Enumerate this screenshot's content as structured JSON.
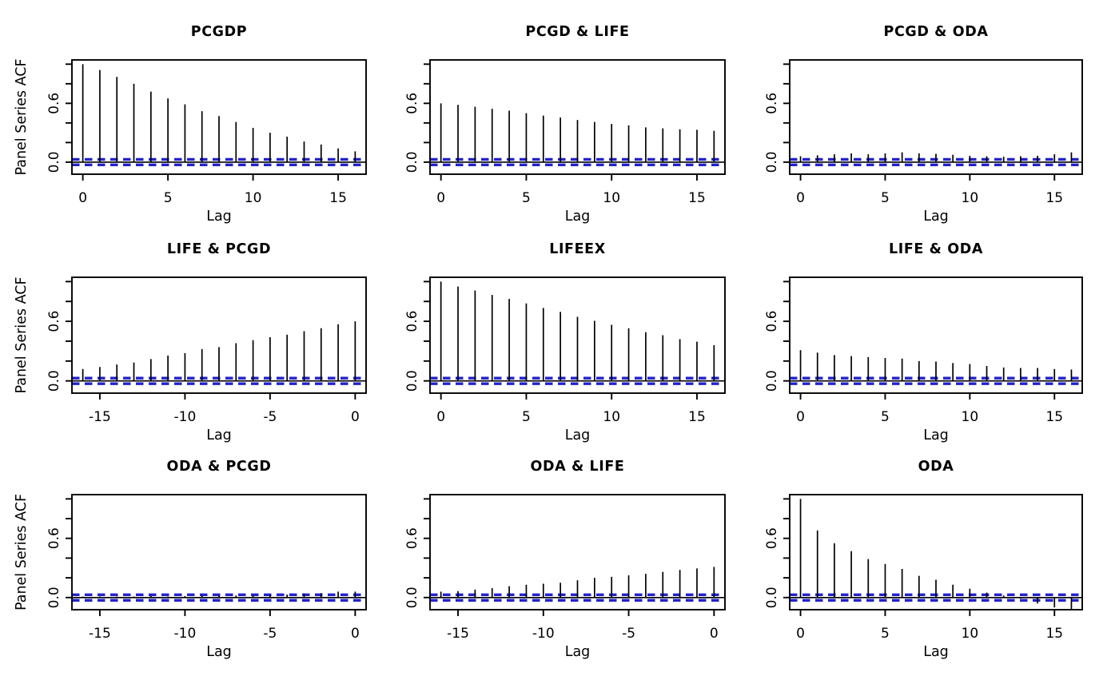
{
  "figure_title": "",
  "colors": {
    "bar": "#000000",
    "box": "#000000",
    "ci_line": "#2222cc",
    "background": "#ffffff"
  },
  "chart_data": [
    {
      "type": "bar",
      "title": "PCGDP",
      "xlabel": "Lag",
      "ylabel": "Panel Series ACF",
      "lags": [
        0,
        1,
        2,
        3,
        4,
        5,
        6,
        7,
        8,
        9,
        10,
        11,
        12,
        13,
        14,
        15,
        16
      ],
      "values": [
        1.0,
        0.94,
        0.87,
        0.8,
        0.72,
        0.65,
        0.59,
        0.52,
        0.47,
        0.41,
        0.35,
        0.3,
        0.26,
        0.21,
        0.18,
        0.14,
        0.11
      ],
      "x_ticks": [
        0,
        5,
        10,
        15
      ],
      "x_tick_labels": [
        "0",
        "5",
        "10",
        "15"
      ],
      "y_ticks": [
        0,
        0.6
      ],
      "y_tick_labels": [
        "0.0",
        "0.6"
      ],
      "y_minor_ticks": [
        0,
        0.2,
        0.4,
        0.6,
        0.8,
        1.0
      ],
      "ylim": [
        -0.1232,
        1.0432
      ],
      "ci_lines": [
        0.028,
        -0.028
      ]
    },
    {
      "type": "bar",
      "title": "PCGD & LIFE",
      "xlabel": "Lag",
      "ylabel": "",
      "lags": [
        0,
        1,
        2,
        3,
        4,
        5,
        6,
        7,
        8,
        9,
        10,
        11,
        12,
        13,
        14,
        15,
        16
      ],
      "values": [
        0.6,
        0.585,
        0.565,
        0.545,
        0.525,
        0.5,
        0.475,
        0.455,
        0.43,
        0.41,
        0.39,
        0.375,
        0.355,
        0.345,
        0.335,
        0.33,
        0.32
      ],
      "x_ticks": [
        0,
        5,
        10,
        15
      ],
      "x_tick_labels": [
        "0",
        "5",
        "10",
        "15"
      ],
      "y_ticks": [
        0,
        0.6
      ],
      "y_tick_labels": [
        "0.0",
        "0.6"
      ],
      "y_minor_ticks": [
        0,
        0.2,
        0.4,
        0.6,
        0.8,
        1.0
      ],
      "ylim": [
        -0.1232,
        1.0432
      ],
      "ci_lines": [
        0.028,
        -0.028
      ]
    },
    {
      "type": "bar",
      "title": "PCGD & ODA",
      "xlabel": "Lag",
      "ylabel": "",
      "lags": [
        0,
        1,
        2,
        3,
        4,
        5,
        6,
        7,
        8,
        9,
        10,
        11,
        12,
        13,
        14,
        15,
        16
      ],
      "values": [
        0.06,
        0.07,
        0.08,
        0.09,
        0.08,
        0.09,
        0.1,
        0.09,
        0.085,
        0.075,
        0.065,
        0.06,
        0.055,
        0.06,
        0.065,
        0.08,
        0.1
      ],
      "x_ticks": [
        0,
        5,
        10,
        15
      ],
      "x_tick_labels": [
        "0",
        "5",
        "10",
        "15"
      ],
      "y_ticks": [
        0,
        0.6
      ],
      "y_tick_labels": [
        "0.0",
        "0.6"
      ],
      "y_minor_ticks": [
        0,
        0.2,
        0.4,
        0.6,
        0.8,
        1.0
      ],
      "ylim": [
        -0.1232,
        1.0432
      ],
      "ci_lines": [
        0.028,
        -0.028
      ]
    },
    {
      "type": "bar",
      "title": "LIFE & PCGD",
      "xlabel": "Lag",
      "ylabel": "Panel Series ACF",
      "lags": [
        -16,
        -15,
        -14,
        -13,
        -12,
        -11,
        -10,
        -9,
        -8,
        -7,
        -6,
        -5,
        -4,
        -3,
        -2,
        -1,
        0
      ],
      "values": [
        0.12,
        0.14,
        0.165,
        0.185,
        0.22,
        0.255,
        0.28,
        0.32,
        0.34,
        0.38,
        0.41,
        0.44,
        0.465,
        0.5,
        0.53,
        0.57,
        0.6
      ],
      "x_ticks": [
        -15,
        -10,
        -5,
        0
      ],
      "x_tick_labels": [
        "-15",
        "-10",
        "-5",
        "0"
      ],
      "y_ticks": [
        0,
        0.6
      ],
      "y_tick_labels": [
        "0.0",
        "0.6"
      ],
      "y_minor_ticks": [
        0,
        0.2,
        0.4,
        0.6,
        0.8,
        1.0
      ],
      "ylim": [
        -0.1232,
        1.0432
      ],
      "ci_lines": [
        0.028,
        -0.028
      ]
    },
    {
      "type": "bar",
      "title": "LIFEEX",
      "xlabel": "Lag",
      "ylabel": "",
      "lags": [
        0,
        1,
        2,
        3,
        4,
        5,
        6,
        7,
        8,
        9,
        10,
        11,
        12,
        13,
        14,
        15,
        16
      ],
      "values": [
        1.0,
        0.95,
        0.91,
        0.865,
        0.825,
        0.78,
        0.735,
        0.695,
        0.645,
        0.605,
        0.565,
        0.53,
        0.49,
        0.46,
        0.42,
        0.395,
        0.36
      ],
      "x_ticks": [
        0,
        5,
        10,
        15
      ],
      "x_tick_labels": [
        "0",
        "5",
        "10",
        "15"
      ],
      "y_ticks": [
        0,
        0.6
      ],
      "y_tick_labels": [
        "0.0",
        "0.6"
      ],
      "y_minor_ticks": [
        0,
        0.2,
        0.4,
        0.6,
        0.8,
        1.0
      ],
      "ylim": [
        -0.1232,
        1.0432
      ],
      "ci_lines": [
        0.028,
        -0.028
      ]
    },
    {
      "type": "bar",
      "title": "LIFE & ODA",
      "xlabel": "Lag",
      "ylabel": "",
      "lags": [
        0,
        1,
        2,
        3,
        4,
        5,
        6,
        7,
        8,
        9,
        10,
        11,
        12,
        13,
        14,
        15,
        16
      ],
      "values": [
        0.31,
        0.285,
        0.26,
        0.25,
        0.24,
        0.23,
        0.225,
        0.2,
        0.195,
        0.18,
        0.17,
        0.15,
        0.135,
        0.13,
        0.13,
        0.12,
        0.115
      ],
      "x_ticks": [
        0,
        5,
        10,
        15
      ],
      "x_tick_labels": [
        "0",
        "5",
        "10",
        "15"
      ],
      "y_ticks": [
        0,
        0.6
      ],
      "y_tick_labels": [
        "0.0",
        "0.6"
      ],
      "y_minor_ticks": [
        0,
        0.2,
        0.4,
        0.6,
        0.8,
        1.0
      ],
      "ylim": [
        -0.1232,
        1.0432
      ],
      "ci_lines": [
        0.028,
        -0.028
      ]
    },
    {
      "type": "bar",
      "title": "ODA & PCGD",
      "xlabel": "Lag",
      "ylabel": "Panel Series ACF",
      "lags": [
        -16,
        -15,
        -14,
        -13,
        -12,
        -11,
        -10,
        -9,
        -8,
        -7,
        -6,
        -5,
        -4,
        -3,
        -2,
        -1,
        0
      ],
      "values": [
        0.01,
        0.01,
        0.01,
        0.01,
        0.015,
        0.01,
        0.015,
        0.02,
        0.02,
        0.02,
        0.02,
        0.025,
        0.03,
        0.04,
        0.045,
        0.06,
        0.06
      ],
      "x_ticks": [
        -15,
        -10,
        -5,
        0
      ],
      "x_tick_labels": [
        "-15",
        "-10",
        "-5",
        "0"
      ],
      "y_ticks": [
        0,
        0.6
      ],
      "y_tick_labels": [
        "0.0",
        "0.6"
      ],
      "y_minor_ticks": [
        0,
        0.2,
        0.4,
        0.6,
        0.8,
        1.0
      ],
      "ylim": [
        -0.1232,
        1.0432
      ],
      "ci_lines": [
        0.028,
        -0.028
      ]
    },
    {
      "type": "bar",
      "title": "ODA & LIFE",
      "xlabel": "Lag",
      "ylabel": "",
      "lags": [
        -16,
        -15,
        -14,
        -13,
        -12,
        -11,
        -10,
        -9,
        -8,
        -7,
        -6,
        -5,
        -4,
        -3,
        -2,
        -1,
        0
      ],
      "values": [
        0.06,
        0.065,
        0.08,
        0.095,
        0.115,
        0.13,
        0.14,
        0.15,
        0.175,
        0.2,
        0.21,
        0.225,
        0.24,
        0.26,
        0.28,
        0.295,
        0.31
      ],
      "x_ticks": [
        -15,
        -10,
        -5,
        0
      ],
      "x_tick_labels": [
        "-15",
        "-10",
        "-5",
        "0"
      ],
      "y_ticks": [
        0,
        0.6
      ],
      "y_tick_labels": [
        "0.0",
        "0.6"
      ],
      "y_minor_ticks": [
        0,
        0.2,
        0.4,
        0.6,
        0.8,
        1.0
      ],
      "ylim": [
        -0.1232,
        1.0432
      ],
      "ci_lines": [
        0.028,
        -0.028
      ]
    },
    {
      "type": "bar",
      "title": "ODA",
      "xlabel": "Lag",
      "ylabel": "",
      "lags": [
        0,
        1,
        2,
        3,
        4,
        5,
        6,
        7,
        8,
        9,
        10,
        11,
        12,
        13,
        14,
        15,
        16
      ],
      "values": [
        1.0,
        0.68,
        0.55,
        0.47,
        0.39,
        0.34,
        0.29,
        0.22,
        0.18,
        0.13,
        0.09,
        0.05,
        0.02,
        -0.01,
        -0.06,
        -0.1,
        -0.12
      ],
      "x_ticks": [
        0,
        5,
        10,
        15
      ],
      "x_tick_labels": [
        "0",
        "5",
        "10",
        "15"
      ],
      "y_ticks": [
        0,
        0.6
      ],
      "y_tick_labels": [
        "0.0",
        "0.6"
      ],
      "y_minor_ticks": [
        0,
        0.2,
        0.4,
        0.6,
        0.8,
        1.0
      ],
      "ylim": [
        -0.1232,
        1.0432
      ],
      "ci_lines": [
        0.028,
        -0.028
      ]
    }
  ]
}
